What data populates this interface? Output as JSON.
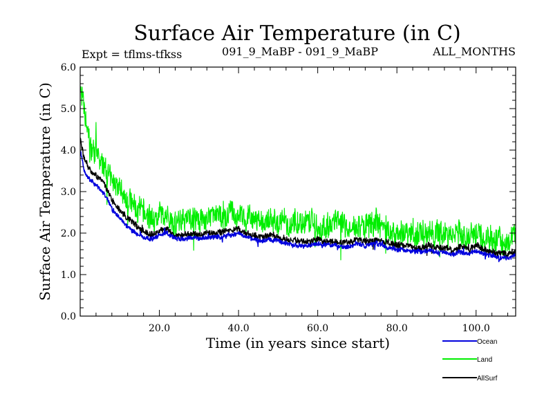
{
  "chart_data": {
    "type": "line",
    "title": "Surface Air Temperature (in C)",
    "subtitle_left": "Expt = tflms-tfkss",
    "subtitle_center": "091_9_MaBP - 091_9_MaBP",
    "subtitle_right": "ALL_MONTHS",
    "xlabel": "Time (in years since start)",
    "ylabel": "Surface Air Temperature (in C)",
    "xlim": [
      0,
      110
    ],
    "ylim": [
      0.0,
      6.0
    ],
    "xticks": [
      20,
      40,
      60,
      80,
      100
    ],
    "xtick_labels": [
      "20.0",
      "40.0",
      "60.0",
      "80.0",
      "100.0"
    ],
    "yticks": [
      0,
      1,
      2,
      3,
      4,
      5,
      6
    ],
    "ytick_labels": [
      "0.0",
      "1.0",
      "2.0",
      "3.0",
      "4.0",
      "5.0",
      "6.0"
    ],
    "series": [
      {
        "name": "Land",
        "color": "#00ee00",
        "x": [
          0,
          1,
          2,
          3,
          4,
          5,
          6,
          7,
          8,
          10,
          12,
          14,
          16,
          18,
          20,
          22,
          23,
          24,
          26,
          28,
          30,
          32,
          35,
          38,
          40,
          42,
          44,
          46,
          48,
          50,
          52,
          55,
          58,
          60,
          62,
          65,
          68,
          70,
          72,
          75,
          78,
          80,
          82,
          85,
          88,
          90,
          92,
          94,
          96,
          98,
          100,
          102,
          104,
          106,
          108,
          110
        ],
        "values": [
          5.6,
          4.9,
          4.4,
          4.0,
          3.9,
          3.7,
          3.6,
          3.4,
          3.2,
          3.0,
          2.8,
          2.6,
          2.45,
          2.35,
          2.4,
          2.5,
          2.3,
          2.2,
          2.35,
          2.3,
          2.3,
          2.35,
          2.4,
          2.45,
          2.5,
          2.4,
          2.3,
          2.2,
          2.3,
          2.25,
          2.2,
          2.2,
          2.3,
          2.2,
          2.15,
          2.2,
          2.1,
          2.2,
          2.15,
          2.25,
          2.1,
          2.0,
          2.05,
          2.0,
          2.0,
          2.0,
          1.95,
          1.9,
          2.0,
          1.85,
          2.0,
          1.85,
          1.8,
          1.85,
          1.75,
          1.8
        ]
      },
      {
        "name": "AllSurf",
        "color": "#000000",
        "x": [
          0,
          1,
          2,
          3,
          4,
          5,
          6,
          7,
          8,
          10,
          12,
          14,
          16,
          18,
          20,
          22,
          24,
          26,
          28,
          30,
          32,
          35,
          38,
          40,
          42,
          44,
          46,
          48,
          50,
          52,
          55,
          58,
          60,
          62,
          65,
          68,
          70,
          72,
          75,
          78,
          80,
          82,
          85,
          88,
          90,
          92,
          94,
          96,
          98,
          100,
          102,
          104,
          106,
          108,
          110
        ],
        "values": [
          4.3,
          3.8,
          3.6,
          3.5,
          3.4,
          3.3,
          3.2,
          3.0,
          2.8,
          2.55,
          2.35,
          2.2,
          2.05,
          1.95,
          2.05,
          2.1,
          1.95,
          1.95,
          2.0,
          1.95,
          2.0,
          2.0,
          2.05,
          2.1,
          2.0,
          1.95,
          1.9,
          1.95,
          1.9,
          1.85,
          1.8,
          1.8,
          1.85,
          1.8,
          1.8,
          1.75,
          1.85,
          1.8,
          1.85,
          1.75,
          1.7,
          1.7,
          1.65,
          1.7,
          1.65,
          1.65,
          1.6,
          1.65,
          1.6,
          1.7,
          1.6,
          1.55,
          1.5,
          1.5,
          1.55
        ]
      },
      {
        "name": "Ocean",
        "color": "#0000dd",
        "x": [
          0,
          1,
          2,
          3,
          4,
          5,
          6,
          7,
          8,
          10,
          12,
          14,
          16,
          18,
          20,
          22,
          24,
          26,
          28,
          30,
          32,
          35,
          38,
          40,
          42,
          44,
          46,
          48,
          50,
          52,
          55,
          58,
          60,
          62,
          65,
          68,
          70,
          72,
          75,
          78,
          80,
          82,
          85,
          88,
          90,
          92,
          94,
          96,
          98,
          100,
          102,
          104,
          106,
          108,
          110
        ],
        "values": [
          4.0,
          3.55,
          3.35,
          3.25,
          3.15,
          3.05,
          2.95,
          2.8,
          2.6,
          2.35,
          2.15,
          2.0,
          1.9,
          1.85,
          1.95,
          2.0,
          1.85,
          1.85,
          1.9,
          1.85,
          1.9,
          1.9,
          1.95,
          2.0,
          1.9,
          1.85,
          1.8,
          1.85,
          1.8,
          1.75,
          1.7,
          1.7,
          1.75,
          1.7,
          1.7,
          1.65,
          1.75,
          1.7,
          1.75,
          1.65,
          1.6,
          1.6,
          1.55,
          1.6,
          1.55,
          1.55,
          1.5,
          1.55,
          1.5,
          1.55,
          1.5,
          1.45,
          1.4,
          1.4,
          1.45
        ]
      }
    ],
    "legend": {
      "placement": "bottom-right",
      "entries": [
        {
          "label": "Ocean",
          "color": "#0000dd"
        },
        {
          "label": "Land",
          "color": "#00ee00"
        },
        {
          "label": "AllSurf",
          "color": "#000000"
        }
      ]
    }
  }
}
